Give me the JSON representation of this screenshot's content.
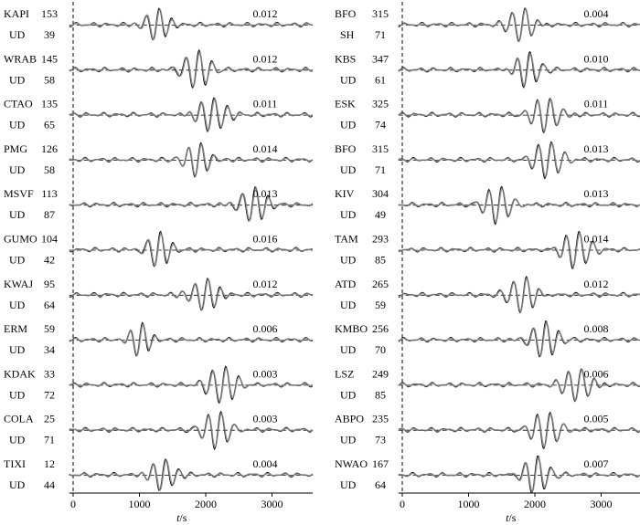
{
  "chart_data": [
    {
      "type": "line",
      "description_free": true,
      "xlabel_parts": [
        "t",
        "/s"
      ],
      "xticks": [
        0,
        1000,
        2000,
        3000
      ],
      "xlim": [
        -100,
        3700
      ],
      "series_colors": {
        "observed": "#000000",
        "synthetic": "#808080"
      },
      "traces": [
        {
          "station": "KAPI",
          "component": "UD",
          "azimuth": "153",
          "distance": "39",
          "amplitude": "0.012",
          "center": 1250,
          "period": 90,
          "width": 210
        },
        {
          "station": "WRAB",
          "component": "UD",
          "azimuth": "145",
          "distance": "58",
          "amplitude": "0.012",
          "center": 1850,
          "period": 90,
          "width": 260
        },
        {
          "station": "CTAO",
          "component": "UD",
          "azimuth": "135",
          "distance": "65",
          "amplitude": "0.011",
          "center": 2080,
          "period": 90,
          "width": 260
        },
        {
          "station": "PMG",
          "component": "UD",
          "azimuth": "126",
          "distance": "58",
          "amplitude": "0.014",
          "center": 1880,
          "period": 90,
          "width": 240
        },
        {
          "station": "MSVF",
          "component": "UD",
          "azimuth": "113",
          "distance": "87",
          "amplitude": "0.013",
          "center": 2700,
          "period": 90,
          "width": 250
        },
        {
          "station": "GUMO",
          "component": "UD",
          "azimuth": "104",
          "distance": "42",
          "amplitude": "0.016",
          "center": 1270,
          "period": 90,
          "width": 220
        },
        {
          "station": "KWAJ",
          "component": "UD",
          "azimuth": "95",
          "distance": "64",
          "amplitude": "0.012",
          "center": 1980,
          "period": 90,
          "width": 250
        },
        {
          "station": "ERM",
          "component": "UD",
          "azimuth": "59",
          "distance": "34",
          "amplitude": "0.006",
          "center": 1000,
          "period": 90,
          "width": 200
        },
        {
          "station": "KDAK",
          "component": "UD",
          "azimuth": "33",
          "distance": "72",
          "amplitude": "0.003",
          "center": 2250,
          "period": 90,
          "width": 270
        },
        {
          "station": "COLA",
          "component": "UD",
          "azimuth": "25",
          "distance": "71",
          "amplitude": "0.003",
          "center": 2180,
          "period": 90,
          "width": 260
        },
        {
          "station": "TIXI",
          "component": "UD",
          "azimuth": "12",
          "distance": "44",
          "amplitude": "0.004",
          "center": 1350,
          "period": 90,
          "width": 220
        }
      ]
    },
    {
      "type": "line",
      "xlabel_parts": [
        "t",
        "/s"
      ],
      "xticks": [
        0,
        1000,
        2000,
        3000
      ],
      "xlim": [
        -100,
        3700
      ],
      "series_colors": {
        "observed": "#000000",
        "synthetic": "#808080"
      },
      "traces": [
        {
          "station": "BFO",
          "component": "SH",
          "azimuth": "315",
          "distance": "71",
          "amplitude": "0.004",
          "center": 1800,
          "period": 90,
          "width": 220
        },
        {
          "station": "KBS",
          "component": "UD",
          "azimuth": "347",
          "distance": "61",
          "amplitude": "0.010",
          "center": 1880,
          "period": 90,
          "width": 220
        },
        {
          "station": "ESK",
          "component": "UD",
          "azimuth": "325",
          "distance": "74",
          "amplitude": "0.011",
          "center": 2180,
          "period": 90,
          "width": 260
        },
        {
          "station": "BFO",
          "component": "UD",
          "azimuth": "315",
          "distance": "71",
          "amplitude": "0.013",
          "center": 2200,
          "period": 90,
          "width": 260
        },
        {
          "station": "KIV",
          "component": "UD",
          "azimuth": "304",
          "distance": "49",
          "amplitude": "0.013",
          "center": 1450,
          "period": 90,
          "width": 250
        },
        {
          "station": "TAM",
          "component": "UD",
          "azimuth": "293",
          "distance": "85",
          "amplitude": "0.014",
          "center": 2620,
          "period": 90,
          "width": 260
        },
        {
          "station": "ATD",
          "component": "UD",
          "azimuth": "265",
          "distance": "59",
          "amplitude": "0.012",
          "center": 1820,
          "period": 90,
          "width": 250
        },
        {
          "station": "KMBO",
          "component": "UD",
          "azimuth": "256",
          "distance": "70",
          "amplitude": "0.008",
          "center": 2120,
          "period": 90,
          "width": 260
        },
        {
          "station": "LSZ",
          "component": "UD",
          "azimuth": "249",
          "distance": "85",
          "amplitude": "0.006",
          "center": 2650,
          "period": 90,
          "width": 250
        },
        {
          "station": "ABPO",
          "component": "UD",
          "azimuth": "235",
          "distance": "73",
          "amplitude": "0.005",
          "center": 2180,
          "period": 90,
          "width": 260
        },
        {
          "station": "NWAO",
          "component": "UD",
          "azimuth": "167",
          "distance": "64",
          "amplitude": "0.007",
          "center": 2000,
          "period": 90,
          "width": 250
        }
      ]
    }
  ]
}
